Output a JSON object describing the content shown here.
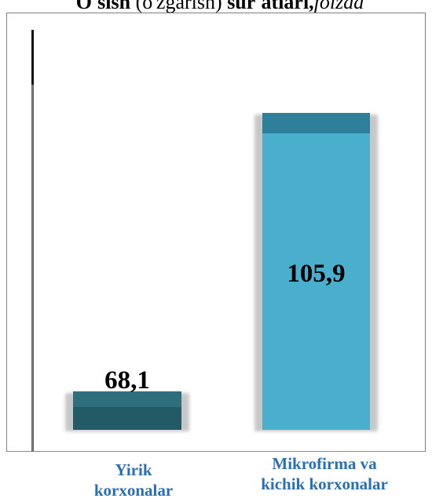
{
  "chart_title": {
    "part1": "O'sish",
    "part2": "(o'zgarish)",
    "part3": "sur'atlari,",
    "part4": "foizda"
  },
  "chart_data": {
    "type": "bar",
    "title": "O'sish (o'zgarish) sur'atlari, foizda",
    "categories": [
      "Yirik korxonalar",
      "Mikrofirma va kichik korxonalar"
    ],
    "category_lines": [
      [
        "Yirik",
        "korxonalar"
      ],
      [
        "Mikrofirma va",
        "kichik korxonalar"
      ]
    ],
    "values": [
      68.1,
      105.9
    ],
    "data_labels": [
      "68,1",
      "105,9"
    ],
    "ylim": [
      65,
      118
    ],
    "grid": false,
    "legend": "none"
  },
  "colors": {
    "bar1_front": "#225a66",
    "bar1_top": "#2f6f7c",
    "bar2_front": "#4aaecd",
    "bar2_top": "#2e7f99",
    "category_text": "#2a6fb5"
  }
}
